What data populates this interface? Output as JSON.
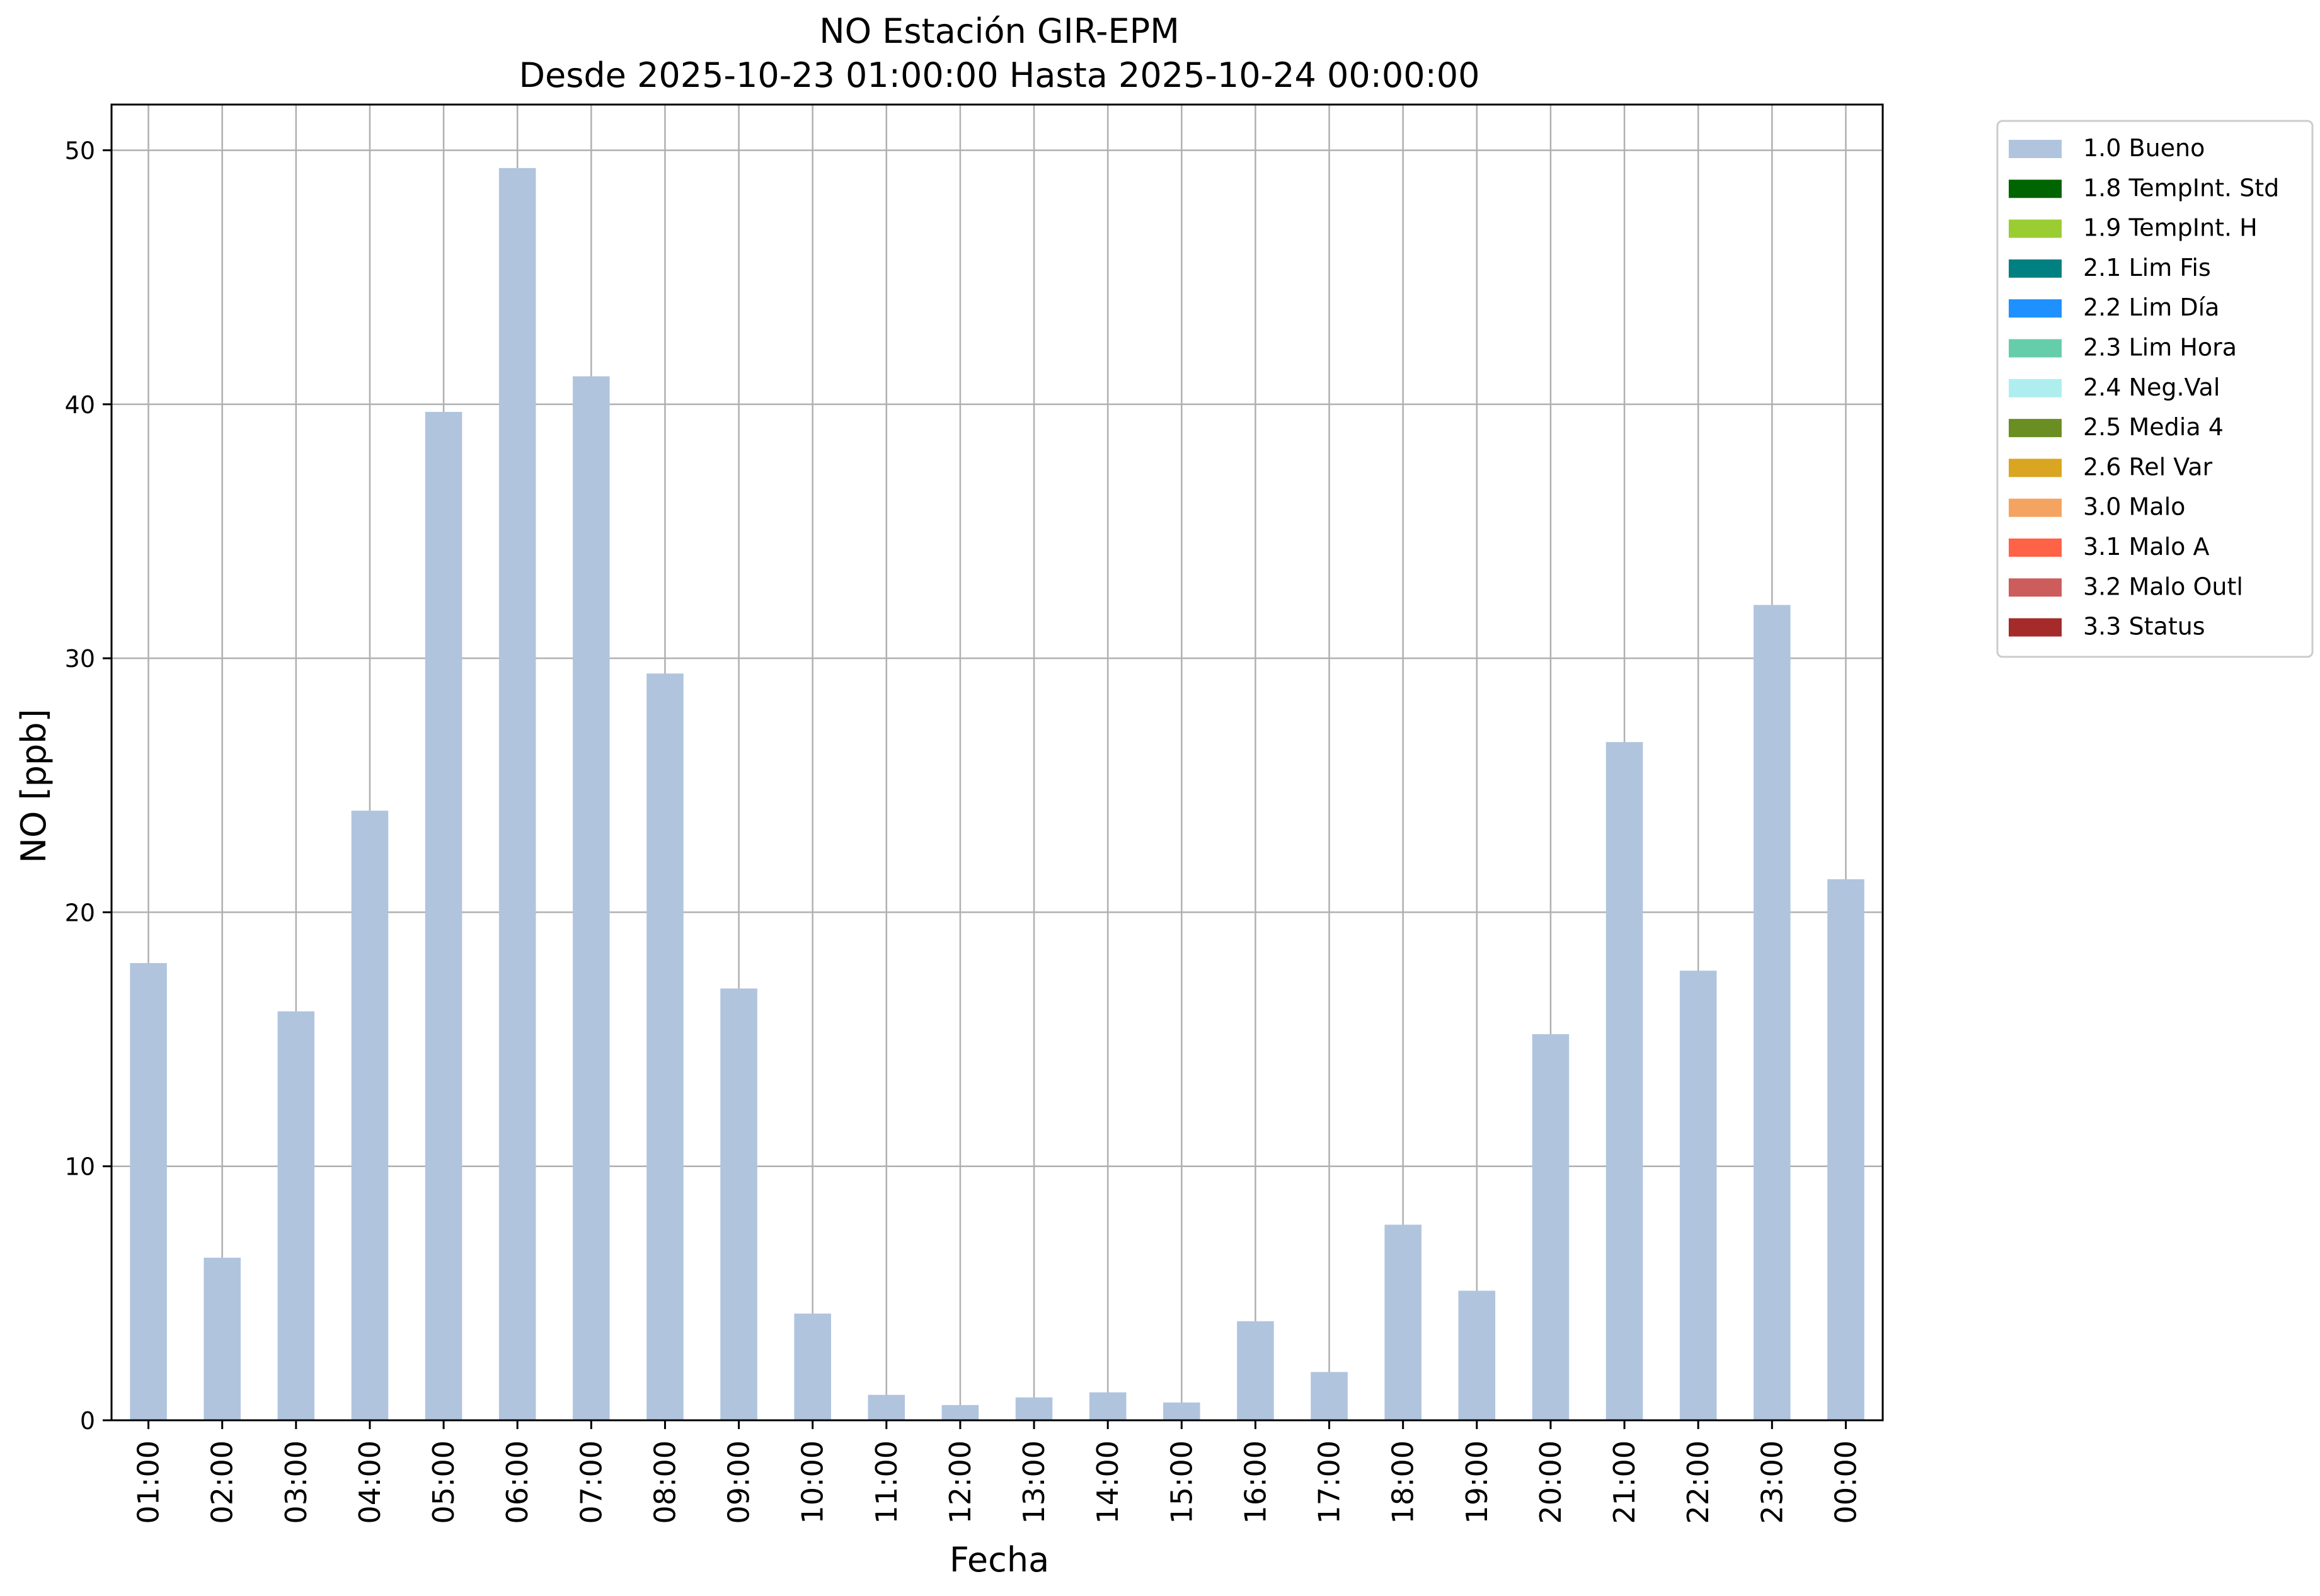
{
  "chart_data": {
    "type": "bar",
    "title": "NO Estación GIR-EPM",
    "subtitle": "Desde 2025-10-23 01:00:00 Hasta 2025-10-24 00:00:00",
    "xlabel": "Fecha",
    "ylabel": "NO [ppb]",
    "categories": [
      "01:00",
      "02:00",
      "03:00",
      "04:00",
      "05:00",
      "06:00",
      "07:00",
      "08:00",
      "09:00",
      "10:00",
      "11:00",
      "12:00",
      "13:00",
      "14:00",
      "15:00",
      "16:00",
      "17:00",
      "18:00",
      "19:00",
      "20:00",
      "21:00",
      "22:00",
      "23:00",
      "00:00"
    ],
    "series": [
      {
        "name": "1.0 Bueno",
        "color": "#b0c4de",
        "values": [
          18.0,
          6.4,
          16.1,
          24.0,
          39.7,
          49.3,
          41.1,
          29.4,
          17.0,
          4.2,
          1.0,
          0.6,
          0.9,
          1.1,
          0.7,
          3.9,
          1.9,
          7.7,
          5.1,
          15.2,
          26.7,
          17.7,
          32.1,
          21.3
        ]
      }
    ],
    "ylim": [
      0,
      51.8
    ],
    "yticks": [
      0,
      10,
      20,
      30,
      40,
      50
    ],
    "grid": true,
    "legend_position": "outside-top-right",
    "legend": [
      {
        "label": "1.0 Bueno",
        "color": "#b0c4de"
      },
      {
        "label": "1.8 TempInt. Std",
        "color": "#006400"
      },
      {
        "label": "1.9 TempInt. H",
        "color": "#9acd32"
      },
      {
        "label": "2.1 Lim Fis",
        "color": "#008080"
      },
      {
        "label": "2.2 Lim Día",
        "color": "#1e90ff"
      },
      {
        "label": "2.3 Lim Hora",
        "color": "#66cdaa"
      },
      {
        "label": "2.4 Neg.Val",
        "color": "#afeeee"
      },
      {
        "label": "2.5 Media 4",
        "color": "#6b8e23"
      },
      {
        "label": "2.6 Rel Var",
        "color": "#daa520"
      },
      {
        "label": "3.0 Malo",
        "color": "#f4a460"
      },
      {
        "label": "3.1 Malo A",
        "color": "#ff6347"
      },
      {
        "label": "3.2 Malo Outl",
        "color": "#cd5c5c"
      },
      {
        "label": "3.3 Status",
        "color": "#a52a2a"
      }
    ]
  }
}
